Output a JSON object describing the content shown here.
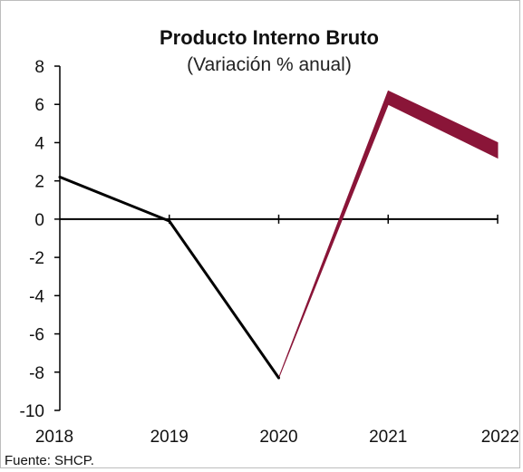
{
  "chart_data": {
    "type": "line",
    "title": "Producto Interno Bruto",
    "subtitle": "(Variación % anual)",
    "xlabel": "",
    "ylabel": "",
    "categories": [
      "2018",
      "2019",
      "2020",
      "2021",
      "2022"
    ],
    "ylim": [
      -10,
      8
    ],
    "yticks": [
      8,
      6,
      4,
      2,
      0,
      -2,
      -4,
      -6,
      -8,
      -10
    ],
    "series": [
      {
        "values": [
          2.2,
          -0.1,
          -8.3,
          null,
          null
        ]
      }
    ],
    "forecast_band": {
      "x": [
        "2020",
        "2021",
        "2022"
      ],
      "upper": [
        -8.3,
        6.7,
        4.0
      ],
      "lower": [
        -8.3,
        6.0,
        3.2
      ]
    },
    "grid": false,
    "legend": "none",
    "source": "Fuente: SHCP."
  },
  "colors": {
    "line": "#000000",
    "band": "#8a1538",
    "axis": "#000000"
  }
}
